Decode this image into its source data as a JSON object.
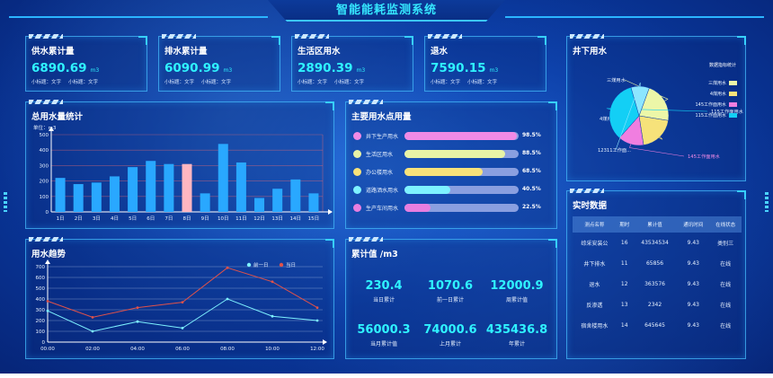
{
  "header": {
    "title": "智能能耗监测系统"
  },
  "kpis": [
    {
      "title": "供水累计量",
      "value": "6890.69",
      "unit": "m3",
      "sub1": "小标题：文字",
      "sub2": "小标题：文字"
    },
    {
      "title": "排水累计量",
      "value": "6090.99",
      "unit": "m3",
      "sub1": "小标题：文字",
      "sub2": "小标题：文字"
    },
    {
      "title": "生活区用水",
      "value": "2890.39",
      "unit": "m3",
      "sub1": "小标题：文字",
      "sub2": "小标题：文字"
    },
    {
      "title": "退水",
      "value": "7590.15",
      "unit": "m3",
      "sub1": "小标题：文字",
      "sub2": "小标题：文字"
    }
  ],
  "total_chart": {
    "title": "总用水量统计",
    "unit_label": "单位：m3"
  },
  "main_points": {
    "title": "主要用水点用量",
    "items": [
      {
        "label": "井下生产用水",
        "pct_text": "98.5%",
        "pct": 0.985,
        "color": "#f08ae6"
      },
      {
        "label": "生活区用水",
        "pct_text": "88.5%",
        "pct": 0.885,
        "color": "#e8f3a6"
      },
      {
        "label": "办公楼用水",
        "pct_text": "68.5%",
        "pct": 0.685,
        "color": "#f8e27a"
      },
      {
        "label": "道路洒水用水",
        "pct_text": "40.5%",
        "pct": 0.405,
        "color": "#7ef2ff"
      },
      {
        "label": "生产车间用水",
        "pct_text": "22.5%",
        "pct": 0.225,
        "color": "#e87ee0"
      }
    ]
  },
  "underground": {
    "title": "井下用水",
    "legend_title": "数据指标统计"
  },
  "trend": {
    "title": "用水趋势"
  },
  "cumulative": {
    "title": "累计值 /m3",
    "stats": [
      {
        "value": "230.4",
        "label": "当日累计"
      },
      {
        "value": "1070.6",
        "label": "前一日累计"
      },
      {
        "value": "12000.9",
        "label": "周累计值"
      },
      {
        "value": "56000.3",
        "label": "当月累计值"
      },
      {
        "value": "74000.6",
        "label": "上月累计"
      },
      {
        "value": "435436.8",
        "label": "年累计"
      }
    ]
  },
  "realtime": {
    "title": "实时数据",
    "columns": [
      "测点名称",
      "期时",
      "累计值",
      "通讯时间",
      "在线状态"
    ],
    "rows": [
      [
        "综采安装公",
        "16",
        "43534534",
        "9.43",
        "类别三"
      ],
      [
        "井下排水",
        "11",
        "65856",
        "9.43",
        "在线"
      ],
      [
        "退水",
        "12",
        "363576",
        "9.43",
        "在线"
      ],
      [
        "反渗透",
        "13",
        "2342",
        "9.43",
        "在线"
      ],
      [
        "宿舍楼用水",
        "14",
        "645645",
        "9.43",
        "在线"
      ]
    ]
  },
  "chart_data": [
    {
      "type": "bar",
      "title": "总用水量统计",
      "ylabel": "单位：m3",
      "categories": [
        "1日",
        "2日",
        "3日",
        "4日",
        "5日",
        "6日",
        "7日",
        "8日",
        "9日",
        "10日",
        "11日",
        "12日",
        "13日",
        "14日",
        "15日"
      ],
      "values": [
        220,
        180,
        190,
        230,
        290,
        330,
        310,
        310,
        120,
        440,
        320,
        90,
        150,
        210,
        120
      ],
      "highlight_index": 7,
      "highlight_color": "#ffb6c1",
      "bar_color": "#29a8ff",
      "ylim": [
        0,
        500
      ],
      "yticks": [
        0,
        100,
        200,
        300,
        400,
        500
      ]
    },
    {
      "type": "pie",
      "title": "井下用水",
      "legend_title": "数据指标统计",
      "slices": [
        {
          "name": "三煤用水",
          "value": 22,
          "color": "#ecf7a8"
        },
        {
          "name": "4煤用水",
          "value": 20,
          "color": "#f6e27a"
        },
        {
          "name": "145工作面用水",
          "value": 14,
          "color": "#f07ee0"
        },
        {
          "name": "115工作面用水",
          "value": 34,
          "color": "#13cff5"
        },
        {
          "name": "12311工作面...",
          "value": 10,
          "color": "#8ce6ff"
        }
      ],
      "legend": [
        "三煤用水",
        "4煤用水",
        "145工作面用水",
        "115工作面用水"
      ]
    },
    {
      "type": "line",
      "title": "用水趋势",
      "x": [
        "00:00",
        "02:00",
        "04:00",
        "06:00",
        "08:00",
        "10:00",
        "12:00"
      ],
      "ylim": [
        0,
        700
      ],
      "yticks": [
        0,
        100,
        200,
        300,
        400,
        500,
        600,
        700
      ],
      "series": [
        {
          "name": "前一日",
          "color": "#7ef2ff",
          "values": [
            290,
            100,
            190,
            130,
            400,
            240,
            200
          ]
        },
        {
          "name": "当日",
          "color": "#e0524a",
          "values": [
            380,
            230,
            320,
            370,
            690,
            560,
            320
          ]
        }
      ]
    }
  ]
}
